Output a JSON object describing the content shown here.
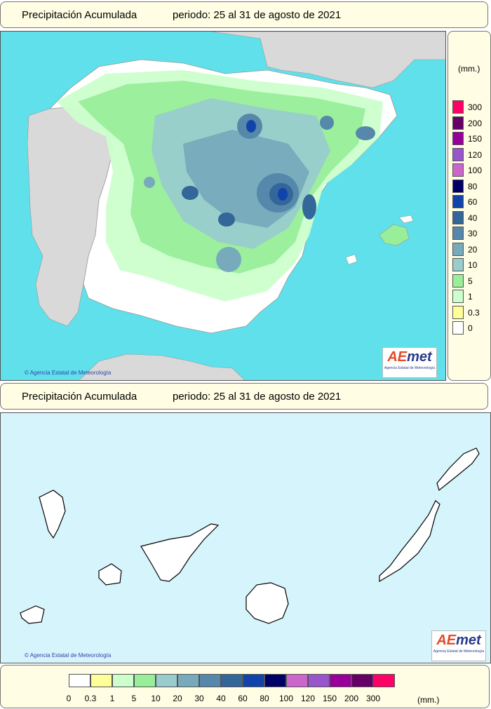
{
  "title": "Precipitación Acumulada",
  "period": "periodo: 25 al 31 de agosto de 2021",
  "unit": "(mm.)",
  "credit": "Agencia Estatal de Meteorología",
  "logo": {
    "brand_a": "AE",
    "brand_b": "met",
    "sub": "Agencia Estatal de Meteorología"
  },
  "legend": {
    "classes": [
      {
        "label": "0",
        "color": "#ffffff"
      },
      {
        "label": "0.3",
        "color": "#ffff99"
      },
      {
        "label": "1",
        "color": "#ccffcc"
      },
      {
        "label": "5",
        "color": "#99ee99"
      },
      {
        "label": "10",
        "color": "#99cccc"
      },
      {
        "label": "20",
        "color": "#77aabb"
      },
      {
        "label": "30",
        "color": "#5588aa"
      },
      {
        "label": "40",
        "color": "#336699"
      },
      {
        "label": "60",
        "color": "#1144aa"
      },
      {
        "label": "80",
        "color": "#000066"
      },
      {
        "label": "100",
        "color": "#cc66cc"
      },
      {
        "label": "120",
        "color": "#9955cc"
      },
      {
        "label": "150",
        "color": "#990099"
      },
      {
        "label": "200",
        "color": "#660066"
      },
      {
        "label": "300",
        "color": "#ff0066"
      }
    ],
    "vertical_labels": [
      "300",
      "200",
      "150",
      "120",
      "100",
      "80",
      "60",
      "40",
      "30",
      "20",
      "10",
      "5",
      "1",
      "0.3",
      "0"
    ],
    "horizontal_labels": [
      "0",
      "0.3",
      "1",
      "5",
      "10",
      "20",
      "30",
      "40",
      "60",
      "80",
      "100",
      "120",
      "150",
      "200",
      "300"
    ]
  },
  "colors": {
    "sea": "#5fe0ea",
    "land_other": "#d9d9d9",
    "canary_sea": "#d5f4fb"
  }
}
